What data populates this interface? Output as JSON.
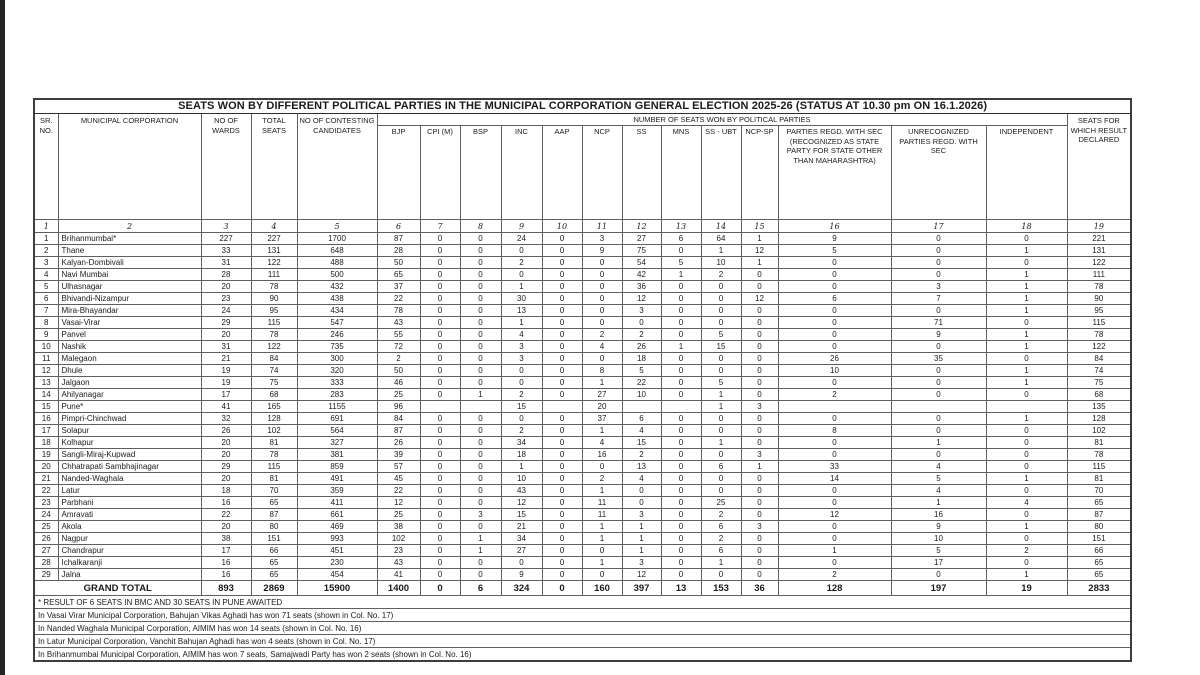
{
  "title": "SEATS WON BY DIFFERENT POLITICAL PARTIES IN THE  MUNICIPAL CORPORATION GENERAL ELECTION 2025-26 (STATUS AT 10.30 pm ON 16.1.2026)",
  "header": {
    "sr_no": "SR. NO.",
    "municipal_corporation": "MUNICIPAL CORPORATION",
    "no_of_wards": "NO OF WARDS",
    "total_seats": "TOTAL SEATS",
    "no_of_contesting_candidates": "NO OF CONTESTING CANDIDATES",
    "seats_won_group": "NUMBER OF SEATS WON BY POLITICAL PARTIES",
    "party_columns": [
      "BJP",
      "CPI (M)",
      "BSP",
      "INC",
      "AAP",
      "NCP",
      "SS",
      "MNS",
      "SS - UBT",
      "NCP-SP",
      "PARTIES REGD. WITH SEC (RECOGNIZED AS STATE PARTY FOR STATE OTHER THAN MAHARASHTRA)",
      "UNRECOGNIZED PARTIES REGD. WITH SEC",
      "INDEPENDENT"
    ],
    "seats_result_declared": "SEATS FOR WHICH RESULT DECLARED",
    "column_numbers": [
      "1",
      "2",
      "3",
      "4",
      "5",
      "6",
      "7",
      "8",
      "9",
      "10",
      "11",
      "12",
      "13",
      "14",
      "15",
      "16",
      "17",
      "18",
      "19"
    ]
  },
  "table": {
    "rows": [
      [
        "1",
        "Brihanmumbai*",
        "227",
        "227",
        "1700",
        "87",
        "0",
        "0",
        "24",
        "0",
        "3",
        "27",
        "6",
        "64",
        "1",
        "9",
        "0",
        "0",
        "221"
      ],
      [
        "2",
        "Thane",
        "33",
        "131",
        "648",
        "28",
        "0",
        "0",
        "0",
        "0",
        "9",
        "75",
        "0",
        "1",
        "12",
        "5",
        "0",
        "1",
        "131"
      ],
      [
        "3",
        "Kalyan-Dombivali",
        "31",
        "122",
        "488",
        "50",
        "0",
        "0",
        "2",
        "0",
        "0",
        "54",
        "5",
        "10",
        "1",
        "0",
        "0",
        "0",
        "122"
      ],
      [
        "4",
        "Navi Mumbai",
        "28",
        "111",
        "500",
        "65",
        "0",
        "0",
        "0",
        "0",
        "0",
        "42",
        "1",
        "2",
        "0",
        "0",
        "0",
        "1",
        "111"
      ],
      [
        "5",
        "Ulhasnagar",
        "20",
        "78",
        "432",
        "37",
        "0",
        "0",
        "1",
        "0",
        "0",
        "36",
        "0",
        "0",
        "0",
        "0",
        "3",
        "1",
        "78"
      ],
      [
        "6",
        "Bhivandi-Nizampur",
        "23",
        "90",
        "438",
        "22",
        "0",
        "0",
        "30",
        "0",
        "0",
        "12",
        "0",
        "0",
        "12",
        "6",
        "7",
        "1",
        "90"
      ],
      [
        "7",
        "Mira-Bhayandar",
        "24",
        "95",
        "434",
        "78",
        "0",
        "0",
        "13",
        "0",
        "0",
        "3",
        "0",
        "0",
        "0",
        "0",
        "0",
        "1",
        "95"
      ],
      [
        "8",
        "Vasai-Virar",
        "29",
        "115",
        "547",
        "43",
        "0",
        "0",
        "1",
        "0",
        "0",
        "0",
        "0",
        "0",
        "0",
        "0",
        "71",
        "0",
        "115"
      ],
      [
        "9",
        "Panvel",
        "20",
        "78",
        "246",
        "55",
        "0",
        "0",
        "4",
        "0",
        "2",
        "2",
        "0",
        "5",
        "0",
        "0",
        "9",
        "1",
        "78"
      ],
      [
        "10",
        "Nashik",
        "31",
        "122",
        "735",
        "72",
        "0",
        "0",
        "3",
        "0",
        "4",
        "26",
        "1",
        "15",
        "0",
        "0",
        "0",
        "1",
        "122"
      ],
      [
        "11",
        "Malegaon",
        "21",
        "84",
        "300",
        "2",
        "0",
        "0",
        "3",
        "0",
        "0",
        "18",
        "0",
        "0",
        "0",
        "26",
        "35",
        "0",
        "84"
      ],
      [
        "12",
        "Dhule",
        "19",
        "74",
        "320",
        "50",
        "0",
        "0",
        "0",
        "0",
        "8",
        "5",
        "0",
        "0",
        "0",
        "10",
        "0",
        "1",
        "74"
      ],
      [
        "13",
        "Jalgaon",
        "19",
        "75",
        "333",
        "46",
        "0",
        "0",
        "0",
        "0",
        "1",
        "22",
        "0",
        "5",
        "0",
        "0",
        "0",
        "1",
        "75"
      ],
      [
        "14",
        "Ahilyanagar",
        "17",
        "68",
        "283",
        "25",
        "0",
        "1",
        "2",
        "0",
        "27",
        "10",
        "0",
        "1",
        "0",
        "2",
        "0",
        "0",
        "68"
      ],
      [
        "15",
        "Pune*",
        "41",
        "165",
        "1155",
        "96",
        "",
        "",
        "15",
        "",
        "20",
        "",
        "",
        "1",
        "3",
        "",
        "",
        "",
        "135"
      ],
      [
        "16",
        "Pimpri-Chinchwad",
        "32",
        "128",
        "691",
        "84",
        "0",
        "0",
        "0",
        "0",
        "37",
        "6",
        "0",
        "0",
        "0",
        "0",
        "0",
        "1",
        "128"
      ],
      [
        "17",
        "Solapur",
        "26",
        "102",
        "564",
        "87",
        "0",
        "0",
        "2",
        "0",
        "1",
        "4",
        "0",
        "0",
        "0",
        "8",
        "0",
        "0",
        "102"
      ],
      [
        "18",
        "Kolhapur",
        "20",
        "81",
        "327",
        "26",
        "0",
        "0",
        "34",
        "0",
        "4",
        "15",
        "0",
        "1",
        "0",
        "0",
        "1",
        "0",
        "81"
      ],
      [
        "19",
        "Sangli-Miraj-Kupwad",
        "20",
        "78",
        "381",
        "39",
        "0",
        "0",
        "18",
        "0",
        "16",
        "2",
        "0",
        "0",
        "3",
        "0",
        "0",
        "0",
        "78"
      ],
      [
        "20",
        "Chhatrapati Sambhajinagar",
        "29",
        "115",
        "859",
        "57",
        "0",
        "0",
        "1",
        "0",
        "0",
        "13",
        "0",
        "6",
        "1",
        "33",
        "4",
        "0",
        "115"
      ],
      [
        "21",
        "Nanded-Waghala",
        "20",
        "81",
        "491",
        "45",
        "0",
        "0",
        "10",
        "0",
        "2",
        "4",
        "0",
        "0",
        "0",
        "14",
        "5",
        "1",
        "81"
      ],
      [
        "22",
        "Latur",
        "18",
        "70",
        "359",
        "22",
        "0",
        "0",
        "43",
        "0",
        "1",
        "0",
        "0",
        "0",
        "0",
        "0",
        "4",
        "0",
        "70"
      ],
      [
        "23",
        "Parbhani",
        "16",
        "65",
        "411",
        "12",
        "0",
        "0",
        "12",
        "0",
        "11",
        "0",
        "0",
        "25",
        "0",
        "0",
        "1",
        "4",
        "65"
      ],
      [
        "24",
        "Amravati",
        "22",
        "87",
        "661",
        "25",
        "0",
        "3",
        "15",
        "0",
        "11",
        "3",
        "0",
        "2",
        "0",
        "12",
        "16",
        "0",
        "87"
      ],
      [
        "25",
        "Akola",
        "20",
        "80",
        "469",
        "38",
        "0",
        "0",
        "21",
        "0",
        "1",
        "1",
        "0",
        "6",
        "3",
        "0",
        "9",
        "1",
        "80"
      ],
      [
        "26",
        "Nagpur",
        "38",
        "151",
        "993",
        "102",
        "0",
        "1",
        "34",
        "0",
        "1",
        "1",
        "0",
        "2",
        "0",
        "0",
        "10",
        "0",
        "151"
      ],
      [
        "27",
        "Chandrapur",
        "17",
        "66",
        "451",
        "23",
        "0",
        "1",
        "27",
        "0",
        "0",
        "1",
        "0",
        "6",
        "0",
        "1",
        "5",
        "2",
        "66"
      ],
      [
        "28",
        "Ichalkaranji",
        "16",
        "65",
        "230",
        "43",
        "0",
        "0",
        "0",
        "0",
        "1",
        "3",
        "0",
        "1",
        "0",
        "0",
        "17",
        "0",
        "65"
      ],
      [
        "29",
        "Jalna",
        "16",
        "65",
        "454",
        "41",
        "0",
        "0",
        "9",
        "0",
        "0",
        "12",
        "0",
        "0",
        "0",
        "2",
        "0",
        "1",
        "65"
      ]
    ],
    "grand_total": {
      "label": "GRAND TOTAL",
      "cells": [
        "893",
        "2869",
        "15900",
        "1400",
        "0",
        "6",
        "324",
        "0",
        "160",
        "397",
        "13",
        "153",
        "36",
        "128",
        "197",
        "19",
        "2833"
      ]
    }
  },
  "footnotes": [
    "* RESULT OF 6 SEATS IN BMC AND 30 SEATS IN PUNE AWAITED",
    "In Vasai Virar Municipal Corporation, Bahujan Vikas Aghadi has won 71 seats (shown in Col. No. 17)",
    "In Nanded Waghala Municipal Corporation, AIMIM has won 14 seats (shown in Col. No. 16)",
    "In Latur Municipal Corporation, Vanchit Bahujan Aghadi has won 4 seats (shown in Col. No. 17)",
    "In Brihanmumbai Municipal Corporation, AIMIM has won 7 seats, Samajwadi Party has won 2 seats (shown in Col. No. 16)"
  ]
}
